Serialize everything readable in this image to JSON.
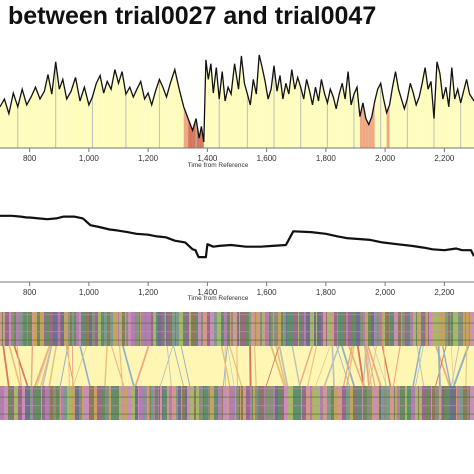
{
  "page": {
    "title": "between trial0027 and trial0047"
  },
  "colors": {
    "band_fill": "#fefdbe",
    "warp_band_fill": "#fff6b4",
    "orange_band": "#f0a882",
    "red_band": "#d8755d",
    "grey_band": "#b9c2b8",
    "line": "#111111",
    "axis": "#777777"
  },
  "chart_data": [
    {
      "type": "area",
      "name": "local-cost-profile",
      "xlabel": "Time from Reference",
      "ylabel": "",
      "xlim": [
        700,
        2300
      ],
      "ylim": [
        0,
        1
      ],
      "x_ticks": [
        800,
        1000,
        1200,
        1400,
        1600,
        1800,
        2000,
        2200
      ],
      "x_tick_labels": [
        "800",
        "1,000",
        "1,200",
        "1,400",
        "1,600",
        "1,800",
        "2,000",
        "2,200"
      ],
      "series": [
        {
          "x": [
            700,
            715,
            730,
            745,
            760,
            775,
            790,
            805,
            820,
            835,
            850,
            862,
            875,
            888,
            900,
            912,
            925,
            940,
            955,
            970,
            985,
            1000,
            1012,
            1025,
            1038,
            1050,
            1062,
            1075,
            1088,
            1100,
            1112,
            1125,
            1138,
            1150,
            1162,
            1175,
            1188,
            1200,
            1212,
            1225,
            1238,
            1250,
            1262,
            1275,
            1290,
            1305,
            1320,
            1335,
            1350,
            1362,
            1372,
            1380,
            1388,
            1395,
            1403,
            1412,
            1420,
            1430,
            1440,
            1450,
            1460,
            1470,
            1480,
            1492,
            1505,
            1515,
            1525,
            1535,
            1545,
            1555,
            1565,
            1575,
            1585,
            1595,
            1605,
            1615,
            1625,
            1635,
            1645,
            1655,
            1665,
            1675,
            1685,
            1695,
            1705,
            1715,
            1725,
            1735,
            1745,
            1755,
            1765,
            1775,
            1785,
            1795,
            1805,
            1815,
            1825,
            1835,
            1845,
            1855,
            1865,
            1875,
            1885,
            1895,
            1905,
            1915,
            1925,
            1935,
            1945,
            1955,
            1965,
            1975,
            1985,
            1995,
            2005,
            2015,
            2025,
            2035,
            2045,
            2055,
            2065,
            2075,
            2085,
            2095,
            2105,
            2115,
            2125,
            2135,
            2145,
            2155,
            2165,
            2175,
            2185,
            2195,
            2205,
            2215,
            2225,
            2235,
            2245,
            2255,
            2265,
            2275,
            2285,
            2300
          ],
          "y": [
            0.42,
            0.5,
            0.35,
            0.56,
            0.42,
            0.6,
            0.44,
            0.52,
            0.62,
            0.5,
            0.58,
            0.75,
            0.55,
            0.88,
            0.6,
            0.7,
            0.5,
            0.58,
            0.72,
            0.48,
            0.62,
            0.44,
            0.52,
            0.66,
            0.74,
            0.56,
            0.68,
            0.6,
            0.8,
            0.66,
            0.78,
            0.55,
            0.62,
            0.52,
            0.6,
            0.68,
            0.5,
            0.56,
            0.44,
            0.58,
            0.7,
            0.62,
            0.52,
            0.66,
            0.8,
            0.6,
            0.42,
            0.3,
            0.18,
            0.3,
            0.1,
            0.22,
            0.06,
            0.9,
            0.7,
            0.86,
            0.56,
            0.82,
            0.5,
            0.78,
            0.48,
            0.62,
            0.55,
            0.86,
            0.6,
            0.94,
            0.66,
            0.55,
            0.44,
            0.7,
            0.55,
            0.95,
            0.82,
            0.68,
            0.5,
            0.6,
            0.84,
            0.58,
            0.74,
            0.5,
            0.66,
            0.55,
            0.8,
            0.6,
            0.72,
            0.62,
            0.5,
            0.7,
            0.58,
            0.44,
            0.62,
            0.48,
            0.7,
            0.56,
            0.46,
            0.6,
            0.52,
            0.4,
            0.55,
            0.66,
            0.5,
            0.78,
            0.44,
            0.55,
            0.62,
            0.32,
            0.46,
            0.3,
            0.24,
            0.32,
            0.48,
            0.6,
            0.66,
            0.5,
            0.36,
            0.44,
            0.62,
            0.78,
            0.6,
            0.5,
            0.4,
            0.5,
            0.66,
            0.56,
            0.44,
            0.52,
            0.66,
            0.82,
            0.6,
            0.68,
            0.3,
            0.88,
            0.76,
            0.5,
            0.62,
            0.42,
            0.82,
            0.5,
            0.6,
            0.46,
            0.58,
            0.7,
            0.55,
            0.48
          ]
        }
      ]
    },
    {
      "type": "line",
      "name": "warping-offset",
      "xlabel": "Time from Reference",
      "ylabel": "",
      "xlim": [
        700,
        2300
      ],
      "ylim": [
        0,
        1
      ],
      "x_ticks": [
        800,
        1000,
        1200,
        1400,
        1600,
        1800,
        2000,
        2200
      ],
      "x_tick_labels": [
        "800",
        "1,000",
        "1,200",
        "1,400",
        "1,600",
        "1,800",
        "2,000",
        "2,200"
      ],
      "series": [
        {
          "x": [
            700,
            740,
            770,
            790,
            800,
            830,
            860,
            890,
            915,
            950,
            980,
            1005,
            1035,
            1070,
            1095,
            1130,
            1160,
            1200,
            1230,
            1260,
            1290,
            1325,
            1350,
            1360,
            1370,
            1395,
            1400,
            1420,
            1440,
            1480,
            1530,
            1580,
            1620,
            1665,
            1690,
            1750,
            1800,
            1840,
            1870,
            1950,
            1990,
            2040,
            2090,
            2130,
            2160,
            2200,
            2240,
            2260,
            2290,
            2300
          ],
          "y": [
            0.77,
            0.77,
            0.76,
            0.75,
            0.75,
            0.74,
            0.73,
            0.74,
            0.76,
            0.76,
            0.74,
            0.66,
            0.64,
            0.61,
            0.6,
            0.58,
            0.56,
            0.55,
            0.53,
            0.52,
            0.48,
            0.46,
            0.38,
            0.37,
            0.29,
            0.29,
            0.44,
            0.41,
            0.42,
            0.43,
            0.41,
            0.41,
            0.42,
            0.43,
            0.59,
            0.58,
            0.56,
            0.53,
            0.51,
            0.49,
            0.46,
            0.44,
            0.42,
            0.4,
            0.38,
            0.37,
            0.39,
            0.37,
            0.37,
            0.3
          ]
        }
      ]
    }
  ]
}
